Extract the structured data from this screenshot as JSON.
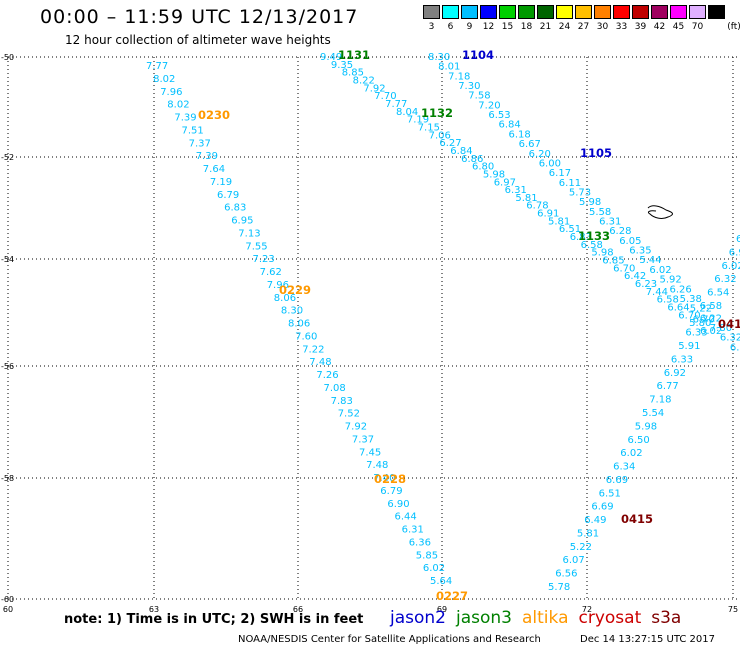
{
  "header": {
    "title": "00:00 – 11:59 UTC 12/13/2017",
    "subtitle": "12 hour collection of altimeter wave heights"
  },
  "colorbar": {
    "unit_label": "(ft)",
    "swatches": [
      {
        "label": "3",
        "color": "#808080"
      },
      {
        "label": "6",
        "color": "#00ffff"
      },
      {
        "label": "9",
        "color": "#00bfff"
      },
      {
        "label": "12",
        "color": "#0000ff"
      },
      {
        "label": "15",
        "color": "#00d000"
      },
      {
        "label": "18",
        "color": "#009a00"
      },
      {
        "label": "21",
        "color": "#006400"
      },
      {
        "label": "24",
        "color": "#ffff00"
      },
      {
        "label": "27",
        "color": "#ffbf00"
      },
      {
        "label": "30",
        "color": "#ff8000"
      },
      {
        "label": "33",
        "color": "#ff0000"
      },
      {
        "label": "39",
        "color": "#c00000"
      },
      {
        "label": "42",
        "color": "#a00060"
      },
      {
        "label": "45",
        "color": "#ff00ff"
      },
      {
        "label": "70",
        "color": "#e0b0ff"
      },
      {
        "label": "",
        "color": "#000000"
      }
    ]
  },
  "axes": {
    "lon_ticks": [
      60,
      63,
      66,
      69,
      72,
      75
    ],
    "lat_ticks": [
      -50,
      -52,
      -54,
      -56,
      -58,
      -60
    ]
  },
  "colors": {
    "wave_text": "#00bfff",
    "jason2": "#0000cc",
    "jason3": "#008000",
    "altika": "#ff9900",
    "cryosat": "#cc0000",
    "s3a": "#800000"
  },
  "tracks": [
    {
      "satellite": "altika",
      "values": [
        "7.77",
        "8.02",
        "7.96",
        "8.02",
        "7.39",
        "7.51",
        "7.37",
        "7.39",
        "7.64",
        "7.19",
        "6.79",
        "6.83",
        "6.95",
        "7.13",
        "7.55",
        "7.23",
        "7.62",
        "7.96",
        "8.06",
        "8.30",
        "8.06",
        "7.60",
        "7.22",
        "7.48",
        "7.26",
        "7.08",
        "7.83",
        "7.52",
        "7.92",
        "7.37",
        "7.45",
        "7.48",
        "7.40",
        "6.79",
        "6.90",
        "6.44",
        "6.31",
        "6.36",
        "5.85",
        "6.02",
        "5.64"
      ]
    },
    {
      "satellite": "jason3",
      "values": [
        "9.49",
        "9.35",
        "8.85",
        "8.22",
        "7.92",
        "7.70",
        "7.77",
        "8.04",
        "7.19",
        "7.15",
        "7.06",
        "6.27",
        "6.84",
        "6.86",
        "6.80",
        "5.98",
        "6.97",
        "6.31",
        "5.81",
        "6.78",
        "6.91",
        "5.81",
        "6.51",
        "6.83",
        "6.58",
        "5.98",
        "6.85",
        "6.70",
        "6.42",
        "6.23",
        "7.44",
        "6.58",
        "6.64",
        "6.70",
        "5.80",
        "6.02"
      ]
    },
    {
      "satellite": "jason2",
      "values": [
        "8.30",
        "8.01",
        "7.18",
        "7.30",
        "7.58",
        "7.20",
        "6.53",
        "6.84",
        "6.18",
        "6.67",
        "6.20",
        "6.00",
        "6.17",
        "6.11",
        "5.73",
        "5.98",
        "5.58",
        "6.31",
        "6.28",
        "6.05",
        "6.35",
        "5.44",
        "6.02",
        "5.92",
        "6.26",
        "5.38",
        "5.22",
        "6.22",
        "7.80",
        "6.32",
        "6.35",
        "6.54"
      ]
    },
    {
      "satellite": "cryosat",
      "values": [
        "5.78",
        "6.56",
        "6.07",
        "5.22",
        "5.81",
        "6.49",
        "6.69",
        "6.51",
        "6.69",
        "6.34",
        "6.02",
        "6.50",
        "5.98",
        "5.54",
        "7.18",
        "6.77",
        "6.92",
        "6.33",
        "5.91",
        "6.33",
        "6.70",
        "6.58",
        "6.54",
        "6.32",
        "6.02",
        "6.99",
        "6.7"
      ]
    }
  ],
  "pass_labels": [
    {
      "text": "0230",
      "satellite": "altika"
    },
    {
      "text": "0229",
      "satellite": "altika"
    },
    {
      "text": "0228",
      "satellite": "altika"
    },
    {
      "text": "0227",
      "satellite": "altika"
    },
    {
      "text": "1131",
      "satellite": "jason3"
    },
    {
      "text": "1132",
      "satellite": "jason3"
    },
    {
      "text": "1133",
      "satellite": "jason3"
    },
    {
      "text": "1104",
      "satellite": "jason2"
    },
    {
      "text": "1105",
      "satellite": "jason2"
    },
    {
      "text": "0415",
      "satellite": "s3a"
    },
    {
      "text": "041",
      "satellite": "s3a"
    }
  ],
  "note": "note: 1) Time is in UTC; 2) SWH is in feet",
  "legend": [
    {
      "name": "jason2",
      "satellite": "jason2"
    },
    {
      "name": "jason3",
      "satellite": "jason3"
    },
    {
      "name": "altika",
      "satellite": "altika"
    },
    {
      "name": "cryosat",
      "satellite": "cryosat"
    },
    {
      "name": "s3a",
      "satellite": "s3a"
    }
  ],
  "footer": {
    "credit": "NOAA/NESDIS Center for Satellite Applications and Research",
    "timestamp": "Dec 14 13:27:15 UTC 2017"
  }
}
